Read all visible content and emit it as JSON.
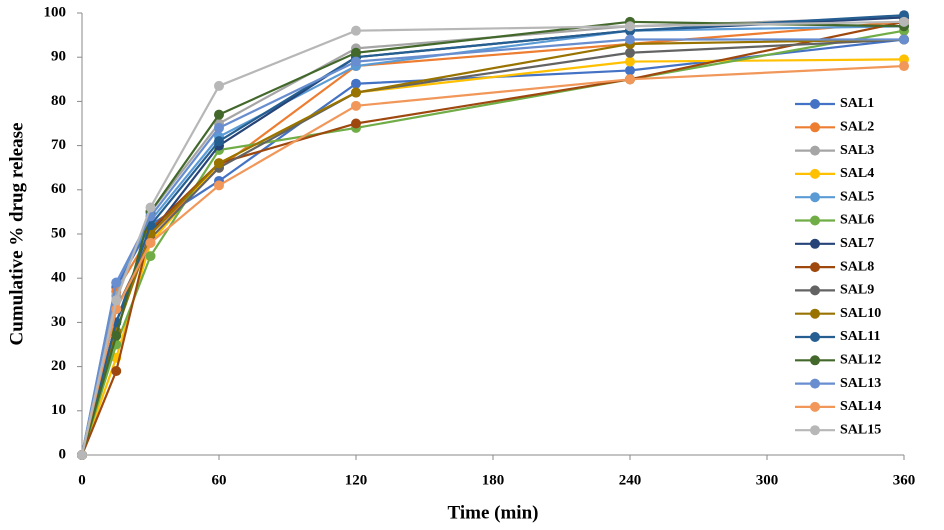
{
  "chart_data": {
    "type": "line",
    "x_label": "Time (min)",
    "y_label": "Cumulative % drug release",
    "x": [
      0,
      15,
      30,
      60,
      120,
      240,
      360
    ],
    "xlim": [
      0,
      360
    ],
    "xticks": [
      0,
      60,
      120,
      180,
      240,
      300,
      360
    ],
    "ylim": [
      0,
      100
    ],
    "yticks": [
      0,
      10,
      20,
      30,
      40,
      50,
      60,
      70,
      80,
      90,
      100
    ],
    "grid": false,
    "legend": "right",
    "series": [
      {
        "name": "SAL1",
        "color": "#4472C4",
        "values": [
          0,
          38,
          52,
          62,
          84,
          87,
          94
        ]
      },
      {
        "name": "SAL2",
        "color": "#ED7D31",
        "values": [
          0,
          37,
          50,
          65,
          88,
          93,
          98
        ]
      },
      {
        "name": "SAL3",
        "color": "#A5A5A5",
        "values": [
          0,
          36,
          55,
          75,
          92,
          97,
          99
        ]
      },
      {
        "name": "SAL4",
        "color": "#FFC000",
        "values": [
          0,
          22,
          48,
          66,
          82,
          89,
          89.5
        ]
      },
      {
        "name": "SAL5",
        "color": "#5B9BD5",
        "values": [
          0,
          39,
          53,
          72,
          88,
          96,
          97
        ]
      },
      {
        "name": "SAL6",
        "color": "#70AD47",
        "values": [
          0,
          25,
          45,
          69,
          74,
          85,
          96
        ]
      },
      {
        "name": "SAL7",
        "color": "#264478",
        "values": [
          0,
          30,
          50,
          70,
          90,
          96,
          99
        ]
      },
      {
        "name": "SAL8",
        "color": "#9E480E",
        "values": [
          0,
          19,
          51,
          66,
          75,
          85,
          98
        ]
      },
      {
        "name": "SAL9",
        "color": "#636363",
        "values": [
          0,
          33,
          49,
          65,
          82,
          91,
          94
        ]
      },
      {
        "name": "SAL10",
        "color": "#997300",
        "values": [
          0,
          28,
          50,
          66,
          82,
          93,
          94
        ]
      },
      {
        "name": "SAL11",
        "color": "#255E91",
        "values": [
          0,
          30,
          52,
          71,
          90,
          96,
          99.5
        ]
      },
      {
        "name": "SAL12",
        "color": "#43682B",
        "values": [
          0,
          27,
          55,
          77,
          91,
          98,
          97
        ]
      },
      {
        "name": "SAL13",
        "color": "#698ED0",
        "values": [
          0,
          39,
          54,
          74,
          89,
          94,
          94
        ]
      },
      {
        "name": "SAL14",
        "color": "#F1975A",
        "values": [
          0,
          33,
          48,
          61,
          79,
          85,
          88
        ]
      },
      {
        "name": "SAL15",
        "color": "#B7B7B7",
        "values": [
          0,
          35,
          56,
          83.5,
          96,
          97,
          98
        ]
      }
    ]
  }
}
